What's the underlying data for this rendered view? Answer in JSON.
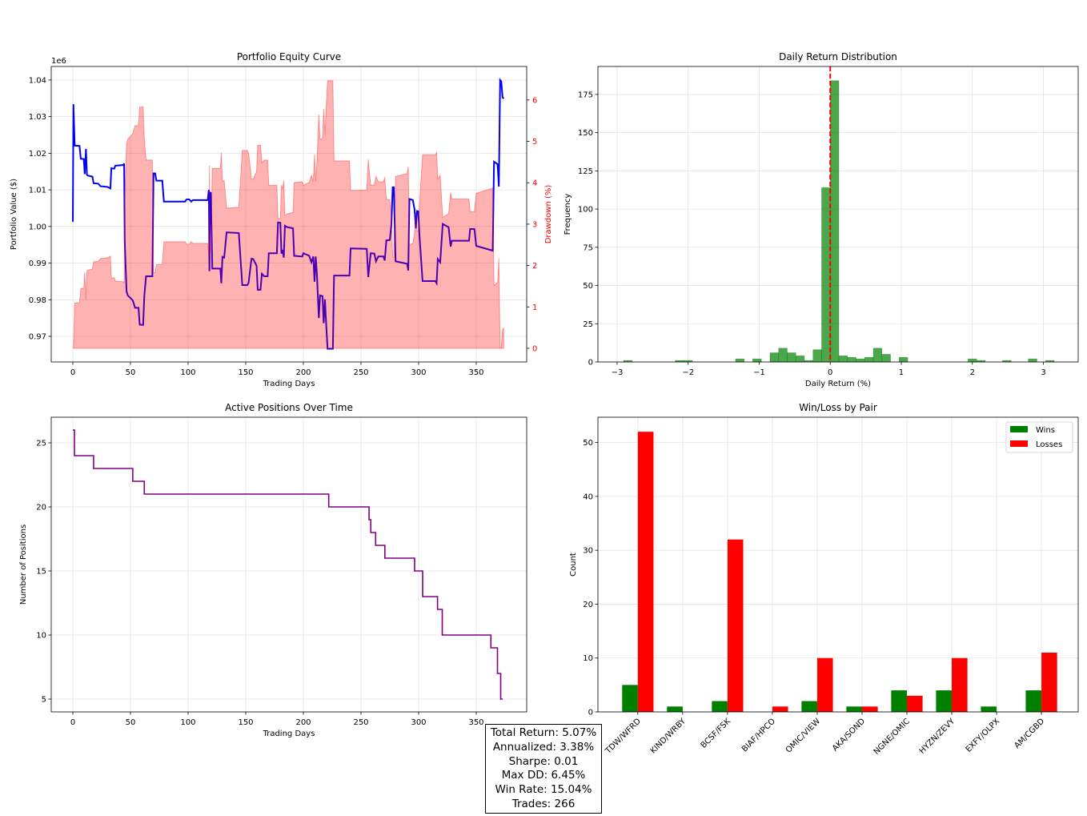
{
  "chart_data": [
    {
      "type": "line",
      "title": "Portfolio Equity Curve",
      "xlabel": "Trading Days",
      "ylabel": "Portfolio Value ($)",
      "y_offset_label": "1e6",
      "y2label": "Drawdown (%)",
      "xlim": [
        -18.75,
        393.75
      ],
      "ylim": [
        963000,
        1043700
      ],
      "y2lim": [
        -0.33,
        6.81
      ],
      "xticks": [
        "0",
        "50",
        "100",
        "150",
        "200",
        "250",
        "300",
        "350"
      ],
      "yticks": [
        "0.97",
        "0.98",
        "0.99",
        "1.00",
        "1.01",
        "1.02",
        "1.03",
        "1.04"
      ],
      "y2ticks": [
        "0",
        "1",
        "2",
        "3",
        "4",
        "5",
        "6"
      ],
      "grid": true,
      "colors": {
        "equity": "#0000ff",
        "drawdown": "#ff0000"
      },
      "series": [
        {
          "name": "Portfolio Value",
          "axis": "left",
          "points": [
            [
              0,
              1001300
            ],
            [
              0.5,
              1033400
            ],
            [
              1.6,
              1022100
            ],
            [
              5.8,
              1022000
            ],
            [
              6.9,
              1018500
            ],
            [
              9.5,
              1018400
            ],
            [
              10.3,
              1014300
            ],
            [
              11.4,
              1021200
            ],
            [
              12.2,
              1014100
            ],
            [
              13,
              1013900
            ],
            [
              17,
              1013600
            ],
            [
              18,
              1011800
            ],
            [
              22,
              1011700
            ],
            [
              24,
              1011000
            ],
            [
              30,
              1010800
            ],
            [
              32.6,
              1010400
            ],
            [
              33.4,
              1015900
            ],
            [
              36,
              1015800
            ],
            [
              36.8,
              1016600
            ],
            [
              44,
              1016800
            ],
            [
              44.5,
              1017200
            ],
            [
              45,
              996200
            ],
            [
              46.6,
              982300
            ],
            [
              47.6,
              981200
            ],
            [
              52,
              979800
            ],
            [
              54,
              977800
            ],
            [
              57,
              977800
            ],
            [
              58,
              973200
            ],
            [
              61,
              973100
            ],
            [
              62,
              981000
            ],
            [
              63.5,
              986400
            ],
            [
              69,
              986400
            ],
            [
              70,
              1014500
            ],
            [
              71.4,
              1014500
            ],
            [
              72.5,
              1012500
            ],
            [
              77.6,
              1012500
            ],
            [
              79,
              1006800
            ],
            [
              97.4,
              1006800
            ],
            [
              98.7,
              1007400
            ],
            [
              101,
              1007400
            ],
            [
              102.7,
              1006800
            ],
            [
              104,
              1007200
            ],
            [
              117,
              1007200
            ],
            [
              118,
              1010000
            ],
            [
              118.5,
              987800
            ],
            [
              119,
              1009300
            ],
            [
              119.7,
              1009200
            ],
            [
              121,
              988500
            ],
            [
              128,
              988500
            ],
            [
              128.8,
              984500
            ],
            [
              129.8,
              991700
            ],
            [
              131.3,
              991500
            ],
            [
              133.4,
              998400
            ],
            [
              144,
              998200
            ],
            [
              147,
              984000
            ],
            [
              151.4,
              984000
            ],
            [
              152.5,
              984700
            ],
            [
              155,
              991200
            ],
            [
              156.5,
              991100
            ],
            [
              159.4,
              989300
            ],
            [
              160.4,
              982700
            ],
            [
              162.8,
              982700
            ],
            [
              164,
              987100
            ],
            [
              166,
              986400
            ],
            [
              169,
              986400
            ],
            [
              170,
              992700
            ],
            [
              177,
              992700
            ],
            [
              178,
              1001100
            ],
            [
              180,
              1001000
            ],
            [
              181,
              992600
            ],
            [
              182,
              993600
            ],
            [
              183,
              991500
            ],
            [
              184,
              1000200
            ],
            [
              186,
              999800
            ],
            [
              191,
              999500
            ],
            [
              192,
              992000
            ],
            [
              199,
              991800
            ],
            [
              200,
              992700
            ],
            [
              205,
              992000
            ],
            [
              207,
              990200
            ],
            [
              208.6,
              991800
            ],
            [
              209.7,
              984900
            ],
            [
              210.7,
              991800
            ],
            [
              211.8,
              986700
            ],
            [
              213.4,
              975000
            ],
            [
              214.5,
              981200
            ],
            [
              216.6,
              981000
            ],
            [
              217.6,
              973600
            ],
            [
              218.7,
              980100
            ],
            [
              219.8,
              973200
            ],
            [
              221,
              966600
            ],
            [
              225.6,
              966600
            ],
            [
              226.6,
              986600
            ],
            [
              240,
              986600
            ],
            [
              241,
              994000
            ],
            [
              255,
              993900
            ],
            [
              256.3,
              986200
            ],
            [
              258.4,
              992700
            ],
            [
              261.6,
              992600
            ],
            [
              263,
              990500
            ],
            [
              265,
              991800
            ],
            [
              269.5,
              991800
            ],
            [
              270.6,
              990700
            ],
            [
              272,
              996200
            ],
            [
              275,
              996300
            ],
            [
              276.4,
              1000600
            ],
            [
              277.5,
              1010700
            ],
            [
              278.5,
              1010700
            ],
            [
              280,
              990500
            ],
            [
              290,
              989800
            ],
            [
              291,
              988000
            ],
            [
              292,
              1007500
            ],
            [
              295,
              1007200
            ],
            [
              296.5,
              1004600
            ],
            [
              297.6,
              999500
            ],
            [
              298.6,
              1004200
            ],
            [
              299.7,
              1004100
            ],
            [
              300.7,
              997700
            ],
            [
              303.4,
              985100
            ],
            [
              314.5,
              985100
            ],
            [
              315.6,
              984500
            ],
            [
              316.6,
              991100
            ],
            [
              318.7,
              990200
            ],
            [
              320.9,
              1000700
            ],
            [
              326,
              999800
            ],
            [
              327.8,
              994500
            ],
            [
              328.8,
              996100
            ],
            [
              343.7,
              996100
            ],
            [
              344.7,
              999300
            ],
            [
              348.4,
              999300
            ],
            [
              350,
              994700
            ],
            [
              364.3,
              993400
            ],
            [
              365.4,
              1017700
            ],
            [
              368.5,
              1017000
            ],
            [
              369.6,
              1010900
            ],
            [
              370.7,
              1040000
            ],
            [
              371.7,
              1039600
            ],
            [
              372.8,
              1035300
            ],
            [
              373.8,
              1034900
            ]
          ]
        },
        {
          "name": "Drawdown (%)",
          "axis": "right",
          "type": "area",
          "derived_from": "Portfolio Value"
        }
      ]
    },
    {
      "type": "bar",
      "subtype": "histogram",
      "title": "Daily Return Distribution",
      "xlabel": "Daily Return (%)",
      "ylabel": "Frequency",
      "xlim": [
        -3.27,
        3.49
      ],
      "ylim": [
        0,
        193.3
      ],
      "xticks": [
        "−3",
        "−2",
        "−1",
        "0",
        "1",
        "2",
        "3"
      ],
      "xtick_values": [
        -3,
        -2,
        -1,
        0,
        1,
        2,
        3
      ],
      "yticks": [
        "0",
        "25",
        "50",
        "75",
        "100",
        "125",
        "150",
        "175"
      ],
      "grid": true,
      "bin_width": 0.1212,
      "bins_left": [
        -2.909,
        -2.182,
        -2.061,
        -1.333,
        -1.091,
        -0.848,
        -0.727,
        -0.606,
        -0.485,
        -0.364,
        -0.242,
        -0.121,
        0.0,
        0.121,
        0.242,
        0.364,
        0.485,
        0.606,
        0.727,
        0.97,
        1.939,
        2.061,
        2.424,
        2.788,
        3.03
      ],
      "counts": [
        1,
        1,
        1,
        2,
        2,
        6,
        9,
        6,
        4,
        1,
        8,
        114,
        184,
        4,
        3,
        2,
        3,
        9,
        5,
        3,
        2,
        1,
        1,
        2,
        1
      ],
      "vline": {
        "x": 0,
        "style": "dashed",
        "color": "#ff0000"
      },
      "colors": {
        "bars": "#008000"
      }
    },
    {
      "type": "line",
      "title": "Active Positions Over Time",
      "xlabel": "Trading Days",
      "ylabel": "Number of Positions",
      "xlim": [
        -18.75,
        393.75
      ],
      "ylim": [
        4,
        27
      ],
      "xticks": [
        "0",
        "50",
        "100",
        "150",
        "200",
        "250",
        "300",
        "350"
      ],
      "yticks": [
        "5",
        "10",
        "15",
        "20",
        "25"
      ],
      "grid": true,
      "colors": {
        "line": "#800080"
      },
      "steps": [
        [
          0,
          26
        ],
        [
          1.4,
          24
        ],
        [
          18,
          23
        ],
        [
          52,
          22
        ],
        [
          62,
          21
        ],
        [
          222,
          20
        ],
        [
          257,
          19
        ],
        [
          258.5,
          18
        ],
        [
          262.7,
          17
        ],
        [
          270.7,
          16
        ],
        [
          296.5,
          15
        ],
        [
          303.5,
          13
        ],
        [
          316.4,
          12
        ],
        [
          320.5,
          10
        ],
        [
          362.7,
          9
        ],
        [
          368.4,
          7
        ],
        [
          371.2,
          5
        ],
        [
          373,
          5
        ]
      ]
    },
    {
      "type": "bar",
      "title": "Win/Loss by Pair",
      "ylabel": "Count",
      "ylim": [
        0,
        54.7
      ],
      "xlim": [
        -0.89,
        9.82
      ],
      "yticks": [
        "0",
        "10",
        "20",
        "30",
        "40",
        "50"
      ],
      "grid": true,
      "legend": "top-right",
      "categories": [
        "TDW/WFRD",
        "KIND/WRBY",
        "BCSF/FSK",
        "BIAF/HPCO",
        "OMIC/VIEW",
        "AKA/SOND",
        "NGNE/OMIC",
        "HYZN/ZEVY",
        "EXFY/OLPX",
        "AM/CGBD"
      ],
      "series": [
        {
          "name": "Wins",
          "color": "#008000",
          "values": [
            5,
            1,
            2,
            0,
            2,
            1,
            4,
            4,
            1,
            4
          ]
        },
        {
          "name": "Losses",
          "color": "#ff0000",
          "values": [
            52,
            0,
            32,
            1,
            10,
            1,
            3,
            10,
            0,
            11
          ]
        }
      ]
    }
  ],
  "stats": {
    "total_return": "Total Return: 5.07%",
    "annualized": "Annualized: 3.38%",
    "sharpe": "Sharpe: 0.01",
    "max_dd": "Max DD: 6.45%",
    "win_rate": "Win Rate: 15.04%",
    "trades": "Trades: 266"
  }
}
